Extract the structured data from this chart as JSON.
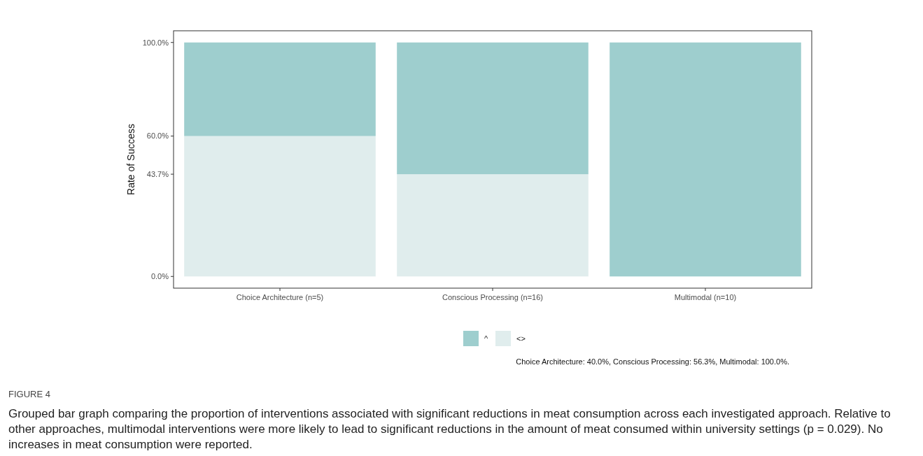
{
  "chart_data": {
    "type": "bar",
    "stacked": true,
    "ylabel": "Rate of Success",
    "categories": [
      "Choice Architecture (n=5)",
      "Conscious Processing (n=16)",
      "Multimodal (n=10)"
    ],
    "series": [
      {
        "name": "<>",
        "color": "#e0eded",
        "values": [
          60,
          43.7,
          0
        ]
      },
      {
        "name": "^",
        "color": "#9ecece",
        "values": [
          40,
          56.3,
          100
        ]
      }
    ],
    "ylim": [
      -5,
      105
    ],
    "yticks": [
      {
        "value": 0,
        "label": "0.0%"
      },
      {
        "value": 43.7,
        "label": "43.7%"
      },
      {
        "value": 60,
        "label": "60.0%"
      },
      {
        "value": 100,
        "label": "100.0%"
      }
    ],
    "grid": false,
    "legend": "bottom",
    "annotations": [
      "Choice Architecture: 40.0%, Conscious Processing: 56.3%, Multimodal: 100.0%.",
      "FIGURE 4",
      "Grouped bar graph comparing the proportion of interventions associated with significant reductions in meat consumption across each investigated approach. Relative to other approaches, multimodal interventions were more likely to lead to significant reductions in the amount of meat consumed within university settings (p = 0.029). No increases in meat consumption were reported."
    ]
  }
}
